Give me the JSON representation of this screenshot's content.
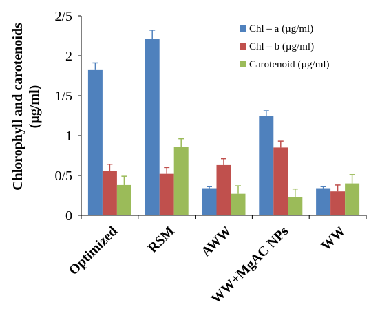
{
  "chart_data": {
    "type": "bar",
    "ylabel": "Chlorophyll and carotenoids",
    "ylabel_unit": "(µg/ml)",
    "categories": [
      "Optimized",
      "RSM",
      "AWW",
      "WW+MgAC NPs",
      "WW"
    ],
    "y_tick_labels": [
      "0",
      "0/5",
      "1",
      "1/5",
      "2",
      "2/5"
    ],
    "y_tick_values": [
      0,
      0.5,
      1,
      1.5,
      2,
      2.5
    ],
    "ylim": [
      0,
      2.5
    ],
    "grid": false,
    "legend_position": "top-right",
    "series": [
      {
        "name": "Chl – a (µg/ml)",
        "color": "#4f81bd",
        "values": [
          1.82,
          2.21,
          0.34,
          1.25,
          0.34
        ],
        "errors": [
          0.09,
          0.11,
          0.02,
          0.06,
          0.02
        ]
      },
      {
        "name": "Chl – b (µg/ml)",
        "color": "#c0504d",
        "values": [
          0.56,
          0.52,
          0.63,
          0.85,
          0.3
        ],
        "errors": [
          0.08,
          0.08,
          0.08,
          0.08,
          0.08
        ]
      },
      {
        "name": "Carotenoid (µg/ml)",
        "color": "#9bbb59",
        "values": [
          0.38,
          0.86,
          0.27,
          0.23,
          0.4
        ],
        "errors": [
          0.11,
          0.1,
          0.1,
          0.1,
          0.11
        ]
      }
    ]
  }
}
